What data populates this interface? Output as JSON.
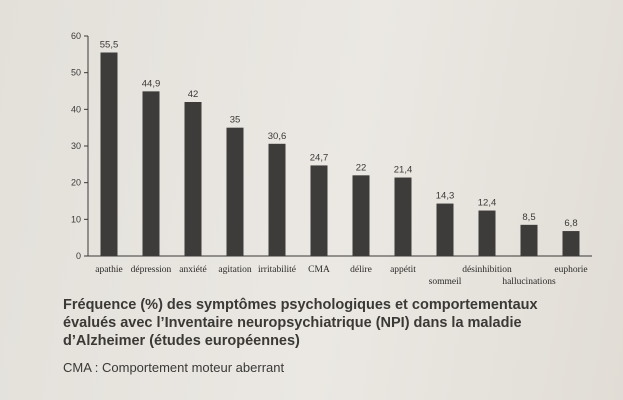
{
  "chart_data": {
    "type": "bar",
    "categories": [
      "apathie",
      "dépression",
      "anxiété",
      "agitation",
      "irritabilité",
      "CMA",
      "délire",
      "appétit",
      "sommeil",
      "désinhibition",
      "hallucinations",
      "euphorie"
    ],
    "values": [
      55.5,
      44.9,
      42,
      35,
      30.6,
      24.7,
      22,
      21.4,
      14.3,
      12.4,
      8.5,
      6.8
    ],
    "value_labels": [
      "55,5",
      "44,9",
      "42",
      "35",
      "30,6",
      "24,7",
      "22",
      "21,4",
      "14,3",
      "12,4",
      "8,5",
      "6,8"
    ],
    "category_label_row": [
      0,
      0,
      0,
      0,
      0,
      0,
      0,
      0,
      1,
      0,
      1,
      0
    ],
    "y_ticks": [
      0,
      10,
      20,
      30,
      40,
      50,
      60
    ],
    "ylim": [
      0,
      60
    ],
    "grid": false,
    "bar_color": "#3d3c3a",
    "title": "",
    "xlabel": "",
    "ylabel": ""
  },
  "caption": {
    "lines": [
      "Fréquence (%) des symptômes psychologiques et comportementaux",
      "évalués avec l’Inventaire neuropsychiatrique (NPI) dans la maladie",
      "d’Alzheimer (études européennes)"
    ],
    "note": "CMA : Comportement moteur aberrant"
  }
}
